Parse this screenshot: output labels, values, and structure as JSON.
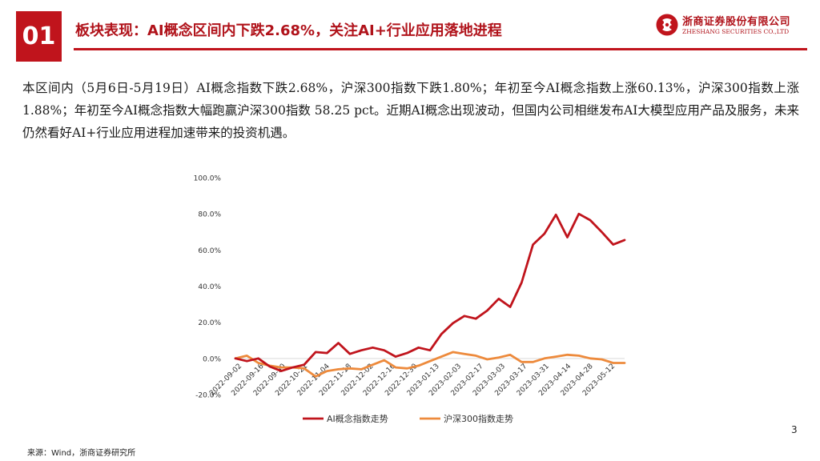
{
  "header": {
    "slide_number": "01",
    "title": "板块表现：AI概念区间内下跌2.68%，关注AI+行业应用落地进程"
  },
  "brand": {
    "name_cn": "浙商证券股份有限公司",
    "name_en": "ZHESHANG SECURITIES CO.,LTD",
    "color": "#c0141c"
  },
  "body": {
    "paragraph": "本区间内（5月6日-5月19日）AI概念指数下跌2.68%，沪深300指数下跌1.80%；年初至今AI概念指数上涨60.13%，沪深300指数上涨1.88%；年初至今AI概念指数大幅跑赢沪深300指数 58.25 pct。近期AI概念出现波动，但国内公司相继发布AI大模型应用产品及服务，未来仍然看好AI+行业应用进程加速带来的投资机遇。"
  },
  "chart_data": {
    "type": "line",
    "title": "",
    "xlabel": "",
    "ylabel": "",
    "ylim": [
      -20,
      100
    ],
    "yticks": [
      -20,
      0,
      20,
      40,
      60,
      80,
      100
    ],
    "ytick_labels": [
      "-20.0%",
      "0.0%",
      "20.0%",
      "40.0%",
      "60.0%",
      "80.0%",
      "100.0%"
    ],
    "x_tick_labels": [
      "2022-09-02",
      "2022-09-16",
      "2022-09-30",
      "2022-10-21",
      "2022-11-04",
      "2022-11-18",
      "2022-12-02",
      "2022-12-16",
      "2022-12-30",
      "2023-01-13",
      "2023-02-03",
      "2023-02-17",
      "2023-03-03",
      "2023-03-17",
      "2023-03-31",
      "2023-04-14",
      "2023-04-28",
      "2023-05-12"
    ],
    "series": [
      {
        "name": "AI概念指数走势",
        "color": "#c0141c",
        "values": [
          0,
          -1.5,
          0,
          -4.5,
          -7,
          -5,
          -3.5,
          3.5,
          3,
          8.5,
          2.5,
          4.5,
          6,
          4.5,
          1,
          3,
          6,
          4.5,
          13.5,
          19.5,
          23.5,
          22,
          26.5,
          33,
          28.5,
          42,
          63,
          69,
          79.5,
          67,
          80,
          76.5,
          70,
          63,
          65.5
        ]
      },
      {
        "name": "沪深300指数走势",
        "color": "#ed8a3c",
        "values": [
          0,
          1.5,
          -2.5,
          -4,
          -5,
          -5,
          -5.5,
          -10,
          -7,
          -6,
          -5.5,
          -6,
          -3.5,
          -1,
          -5,
          -5.5,
          -4,
          -1.5,
          1,
          3.5,
          2.5,
          1.5,
          -0.5,
          0.5,
          2,
          -2,
          -2,
          0,
          1,
          2,
          1.5,
          0,
          -0.5,
          -2.5,
          -2.5
        ]
      }
    ],
    "legend_position": "bottom"
  },
  "footer": {
    "source": "来源：Wind，浙商证券研究所",
    "page_number": "3"
  }
}
